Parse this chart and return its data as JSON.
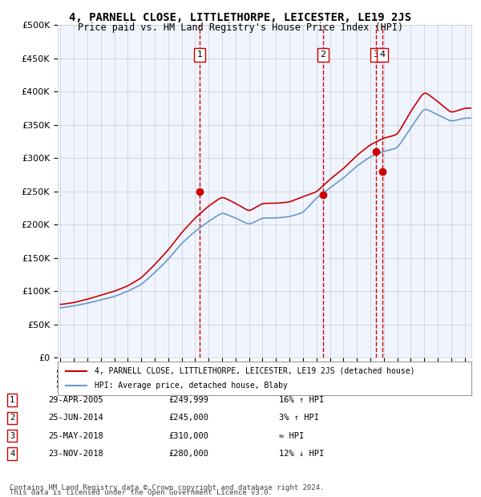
{
  "title": "4, PARNELL CLOSE, LITTLETHORPE, LEICESTER, LE19 2JS",
  "subtitle": "Price paid vs. HM Land Registry's House Price Index (HPI)",
  "ylabel": "",
  "ylim": [
    0,
    500000
  ],
  "yticks": [
    0,
    50000,
    100000,
    150000,
    200000,
    250000,
    300000,
    350000,
    400000,
    450000,
    500000
  ],
  "ytick_labels": [
    "£0",
    "£50K",
    "£100K",
    "£150K",
    "£200K",
    "£250K",
    "£300K",
    "£350K",
    "£400K",
    "£450K",
    "£500K"
  ],
  "x_start_year": 1995,
  "x_end_year": 2025,
  "property_color": "#cc0000",
  "hpi_color": "#6699cc",
  "background_color": "#ffffff",
  "chart_bg_color": "#f0f4ff",
  "grid_color": "#cccccc",
  "legend_box_color": "#ffffff",
  "sale_dates": [
    "2005-04-29",
    "2014-06-25",
    "2018-05-25",
    "2018-11-23"
  ],
  "sale_prices": [
    249999,
    245000,
    310000,
    280000
  ],
  "sale_labels": [
    "1",
    "2",
    "3",
    "4"
  ],
  "vline_color": "#cc0000",
  "marker_color": "#cc0000",
  "property_legend": "4, PARNELL CLOSE, LITTLETHORPE, LEICESTER, LE19 2JS (detached house)",
  "hpi_legend": "HPI: Average price, detached house, Blaby",
  "table_rows": [
    {
      "num": "1",
      "date": "29-APR-2005",
      "price": "£249,999",
      "rel": "16% ↑ HPI"
    },
    {
      "num": "2",
      "date": "25-JUN-2014",
      "price": "£245,000",
      "rel": "3% ↑ HPI"
    },
    {
      "num": "3",
      "date": "25-MAY-2018",
      "price": "£310,000",
      "rel": "≈ HPI"
    },
    {
      "num": "4",
      "date": "23-NOV-2018",
      "price": "£280,000",
      "rel": "12% ↓ HPI"
    }
  ],
  "footer1": "Contains HM Land Registry data © Crown copyright and database right 2024.",
  "footer2": "This data is licensed under the Open Government Licence v3.0.",
  "hpi_data_years": [
    1995,
    1996,
    1997,
    1998,
    1999,
    2000,
    2001,
    2002,
    2003,
    2004,
    2005,
    2006,
    2007,
    2008,
    2009,
    2010,
    2011,
    2012,
    2013,
    2014,
    2015,
    2016,
    2017,
    2018,
    2019,
    2020,
    2021,
    2022,
    2023,
    2024,
    2025
  ],
  "hpi_values": [
    75000,
    78000,
    82000,
    87000,
    92000,
    100000,
    110000,
    128000,
    148000,
    172000,
    190000,
    205000,
    218000,
    210000,
    200000,
    210000,
    210000,
    212000,
    218000,
    240000,
    255000,
    270000,
    288000,
    302000,
    310000,
    315000,
    345000,
    375000,
    365000,
    355000,
    360000
  ],
  "property_data_years": [
    1995,
    1996,
    1997,
    1998,
    1999,
    2000,
    2001,
    2002,
    2003,
    2004,
    2005,
    2006,
    2007,
    2008,
    2009,
    2010,
    2011,
    2012,
    2013,
    2014,
    2015,
    2016,
    2017,
    2018,
    2019,
    2020,
    2021,
    2022,
    2023,
    2024,
    2025
  ],
  "property_values": [
    80000,
    83000,
    88000,
    94000,
    100000,
    108000,
    120000,
    140000,
    162000,
    188000,
    210000,
    228000,
    242000,
    232000,
    220000,
    232000,
    232000,
    234000,
    242000,
    249000,
    268000,
    284000,
    304000,
    320000,
    330000,
    335000,
    370000,
    400000,
    385000,
    368000,
    375000
  ]
}
